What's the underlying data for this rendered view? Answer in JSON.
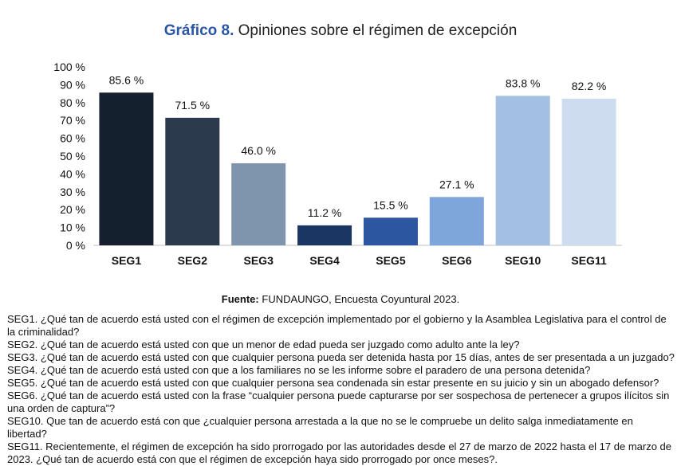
{
  "title": {
    "prefix": "Gráfico 8.",
    "text": "Opiniones sobre el régimen de excepción"
  },
  "chart_data": {
    "type": "bar",
    "categories": [
      "SEG1",
      "SEG2",
      "SEG3",
      "SEG4",
      "SEG5",
      "SEG6",
      "SEG10",
      "SEG11"
    ],
    "values": [
      85.6,
      71.5,
      46.0,
      11.2,
      15.5,
      27.1,
      83.8,
      82.2
    ],
    "value_labels": [
      "85.6 %",
      "71.5 %",
      "46.0 %",
      "11.2 %",
      "15.5 %",
      "27.1 %",
      "83.8 %",
      "82.2 %"
    ],
    "colors": [
      "#15202e",
      "#2b3a4d",
      "#7f94ad",
      "#1c3664",
      "#2c56a0",
      "#7fa6da",
      "#a3bfe2",
      "#cedcef"
    ],
    "yticks": [
      0,
      10,
      20,
      30,
      40,
      50,
      60,
      70,
      80,
      90,
      100
    ],
    "ytick_labels": [
      "0 %",
      "10 %",
      "20 %",
      "30 %",
      "40 %",
      "50 %",
      "60 %",
      "70 %",
      "80 %",
      "90 %",
      "100 %"
    ],
    "ylim": [
      0,
      100
    ],
    "grid": false,
    "legend": "none"
  },
  "source": {
    "label": "Fuente:",
    "text": "FUNDAUNGO, Encuesta Coyuntural 2023."
  },
  "notes": [
    "SEG1. ¿Qué tan de acuerdo está usted con el régimen de excepción implementado por el gobierno y la Asamblea Legislativa para el control de la criminalidad?",
    "SEG2. ¿Qué tan de acuerdo está usted con que un menor de edad pueda ser juzgado como adulto ante la ley?",
    "SEG3. ¿Qué tan de acuerdo está usted con que cualquier persona pueda ser detenida hasta por 15 días, antes de ser presentada a un juzgado?",
    "SEG4. ¿Qué tan de acuerdo está usted con que a los familiares no se les informe sobre el paradero de una persona detenida?",
    "SEG5. ¿Qué tan de acuerdo está usted con que cualquier persona sea condenada sin estar presente en su juicio y sin un abogado defensor?",
    "SEG6. ¿Qué tan de acuerdo está usted con la frase “cualquier persona puede capturarse por ser sospechosa de pertenecer a grupos ilícitos sin una orden de captura”?",
    "SEG10. Que tan de acuerdo está con que ¿cualquier persona arrestada a la que no se le compruebe un delito salga inmediatamente en libertad?",
    "SEG11. Recientemente, el régimen de excepción ha sido prorrogado por las autoridades desde el 27 de marzo de 2022 hasta el 17 de marzo de 2023. ¿Qué tan de acuerdo está con que el régimen de excepción haya sido prorrogado por once meses?."
  ]
}
